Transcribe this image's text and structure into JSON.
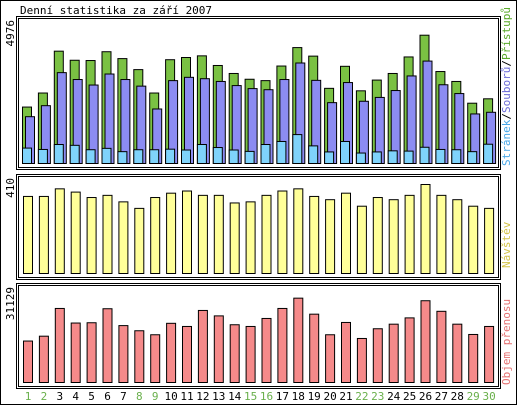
{
  "title": "Denní statistika za září 2007",
  "colors": {
    "hits": "#7ac143",
    "files": "#8c8cf2",
    "pages": "#7fd3fb",
    "visits": "#ffff99",
    "kbytes": "#f58a8a",
    "frame_green": "#2f7a1f",
    "sat_label": "#6ab04c",
    "weekday_label": "#000000"
  },
  "legends": {
    "panel1": [
      {
        "label": "Stránek",
        "color": "#4aa8e8"
      },
      {
        "label": "/",
        "color": "#000000"
      },
      {
        "label": "Souborů",
        "color": "#6b6bd8"
      },
      {
        "label": "/",
        "color": "#000000"
      },
      {
        "label": "Přístupů",
        "color": "#5aaa2a"
      }
    ],
    "panel2": "Návštěv",
    "panel3": "Objem přenosu"
  },
  "ymax_labels": {
    "panel1": "4976",
    "panel2": "410",
    "panel3": "31129"
  },
  "chart_data": [
    {
      "type": "bar",
      "title": "Denní statistika za září 2007",
      "categories": [
        "1",
        "2",
        "3",
        "4",
        "5",
        "6",
        "7",
        "8",
        "9",
        "10",
        "11",
        "12",
        "13",
        "14",
        "15",
        "16",
        "17",
        "18",
        "19",
        "20",
        "21",
        "22",
        "23",
        "24",
        "25",
        "26",
        "27",
        "28",
        "29",
        "30"
      ],
      "weekend_days": [
        "1",
        "2",
        "8",
        "9",
        "15",
        "16",
        "22",
        "23",
        "29",
        "30"
      ],
      "ylim": [
        0,
        4976
      ],
      "series": [
        {
          "name": "Přístupů",
          "values": [
            2050,
            2560,
            4080,
            3750,
            3740,
            4060,
            3810,
            3410,
            2560,
            3770,
            3850,
            3910,
            3560,
            3270,
            3060,
            3010,
            3540,
            4210,
            3900,
            2730,
            3530,
            2640,
            3030,
            3270,
            3870,
            4660,
            3340,
            2980,
            2190,
            2350
          ]
        },
        {
          "name": "Souborů",
          "values": [
            1700,
            2100,
            3300,
            3050,
            2850,
            3250,
            3050,
            2810,
            1980,
            3010,
            3130,
            3080,
            2980,
            2830,
            2720,
            2680,
            3050,
            3650,
            3020,
            2210,
            2940,
            2260,
            2400,
            2650,
            3180,
            3720,
            2860,
            2540,
            1800,
            1860
          ]
        },
        {
          "name": "Stránek",
          "values": [
            560,
            510,
            690,
            660,
            500,
            550,
            430,
            500,
            500,
            520,
            490,
            690,
            580,
            490,
            440,
            690,
            800,
            1050,
            640,
            420,
            800,
            380,
            420,
            460,
            450,
            590,
            510,
            500,
            430,
            700
          ]
        }
      ]
    },
    {
      "type": "bar",
      "title": "",
      "categories": [
        "1",
        "2",
        "3",
        "4",
        "5",
        "6",
        "7",
        "8",
        "9",
        "10",
        "11",
        "12",
        "13",
        "14",
        "15",
        "16",
        "17",
        "18",
        "19",
        "20",
        "21",
        "22",
        "23",
        "24",
        "25",
        "26",
        "27",
        "28",
        "29",
        "30"
      ],
      "ylim": [
        0,
        410
      ],
      "series": [
        {
          "name": "Návštěv",
          "values": [
            355,
            355,
            390,
            375,
            350,
            360,
            330,
            300,
            350,
            370,
            380,
            360,
            360,
            325,
            330,
            360,
            380,
            390,
            355,
            340,
            370,
            310,
            350,
            340,
            360,
            410,
            360,
            340,
            310,
            300
          ]
        }
      ]
    },
    {
      "type": "bar",
      "title": "",
      "categories": [
        "1",
        "2",
        "3",
        "4",
        "5",
        "6",
        "7",
        "8",
        "9",
        "10",
        "11",
        "12",
        "13",
        "14",
        "15",
        "16",
        "17",
        "18",
        "19",
        "20",
        "21",
        "22",
        "23",
        "24",
        "25",
        "26",
        "27",
        "28",
        "29",
        "30"
      ],
      "ylim": [
        0,
        31129
      ],
      "series": [
        {
          "name": "Objem přenosu",
          "values": [
            14500,
            16200,
            25900,
            20800,
            20900,
            25800,
            19900,
            18100,
            16700,
            20700,
            19600,
            25200,
            23300,
            20200,
            19600,
            22400,
            25900,
            29500,
            23900,
            16700,
            21000,
            15400,
            18800,
            20400,
            22600,
            28600,
            24900,
            20400,
            16800,
            19600
          ]
        }
      ]
    }
  ]
}
